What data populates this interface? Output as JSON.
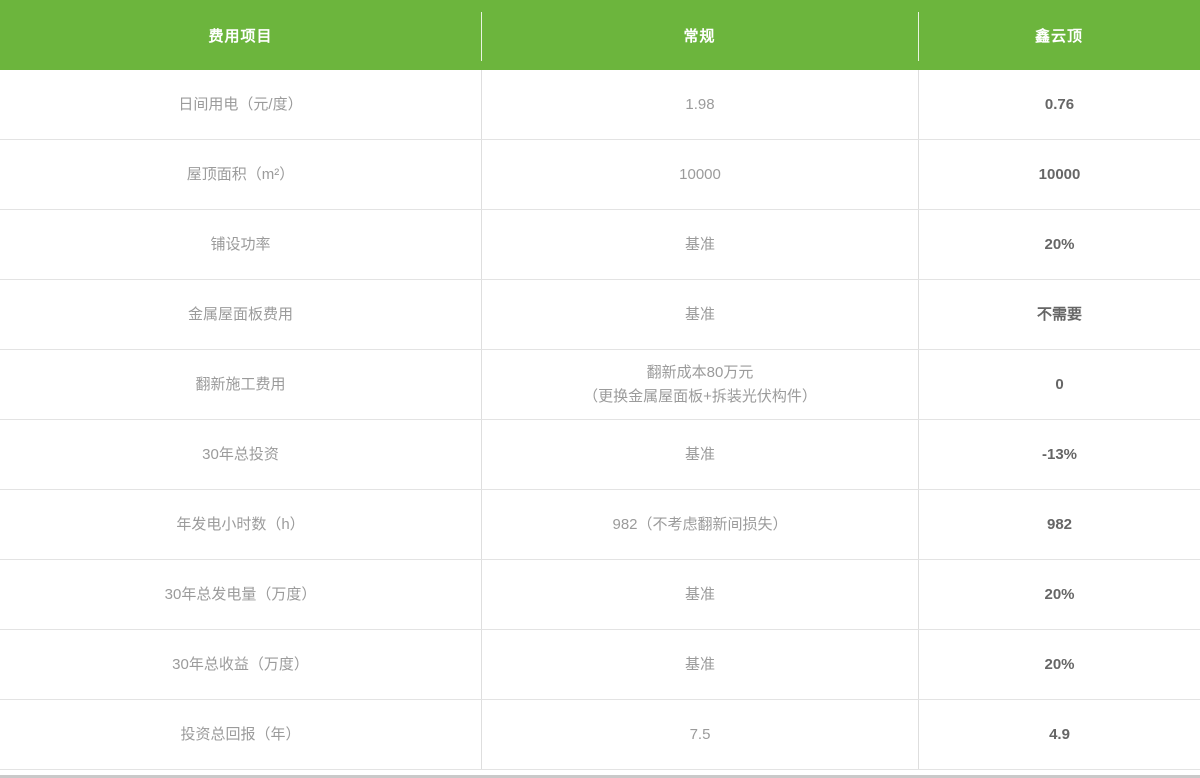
{
  "chart_data": {
    "type": "table",
    "title": "",
    "columns": [
      "费用项目",
      "常规",
      "鑫云顶"
    ],
    "rows": [
      [
        "日间用电（元/度）",
        "1.98",
        "0.76"
      ],
      [
        "屋顶面积（m²）",
        "10000",
        "10000"
      ],
      [
        "铺设功率",
        "基准",
        "20%"
      ],
      [
        "金属屋面板费用",
        "基准",
        "不需要"
      ],
      [
        "翻新施工费用",
        "翻新成本80万元\n（更换金属屋面板+拆装光伏构件）",
        "0"
      ],
      [
        "30年总投资",
        "基准",
        "-13%"
      ],
      [
        "年发电小时数（h）",
        "982（不考虑翻新间损失）",
        "982"
      ],
      [
        "30年总发电量（万度）",
        "基准",
        "20%"
      ],
      [
        "30年总收益（万度）",
        "基准",
        "20%"
      ],
      [
        "投资总回报（年）",
        "7.5",
        "4.9"
      ]
    ]
  },
  "colors": {
    "header_bg": "#6cb53d",
    "header_text": "#ffffff",
    "body_text": "#9b9b9b",
    "highlight_text": "#666666",
    "grid_line": "#e3e3e3",
    "bottom_edge": "#c9c9c9"
  }
}
